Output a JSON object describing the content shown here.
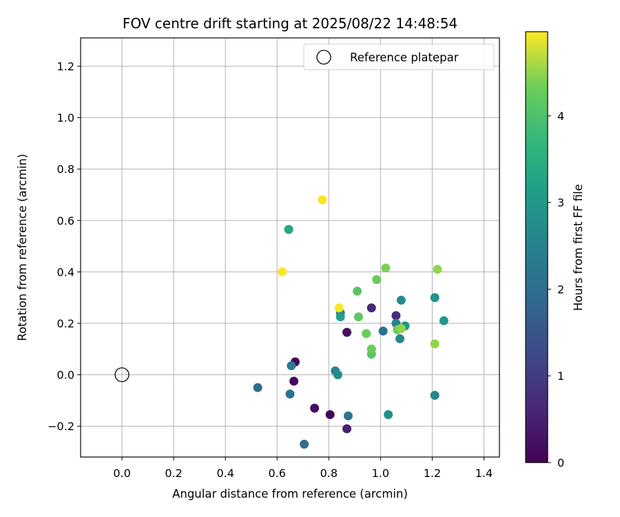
{
  "chart_data": {
    "type": "scatter",
    "title": "FOV centre drift starting at 2025/08/22 14:48:54",
    "xlabel": "Angular distance from reference (arcmin)",
    "ylabel": "Rotation from reference (arcmin)",
    "xlim": [
      -0.16,
      1.46
    ],
    "ylim": [
      -0.32,
      1.31
    ],
    "xticks": [
      0.0,
      0.2,
      0.4,
      0.6,
      0.8,
      1.0,
      1.2,
      1.4
    ],
    "xtick_labels": [
      "0.0",
      "0.2",
      "0.4",
      "0.6",
      "0.8",
      "1.0",
      "1.2",
      "1.4"
    ],
    "yticks": [
      -0.2,
      0.0,
      0.2,
      0.4,
      0.6,
      0.8,
      1.0,
      1.2
    ],
    "ytick_labels": [
      "−0.2",
      "0.0",
      "0.2",
      "0.4",
      "0.6",
      "0.8",
      "1.0",
      "1.2"
    ],
    "grid": true,
    "legend": {
      "entries": [
        "Reference platepar"
      ],
      "placement": "top-right"
    },
    "reference_point": {
      "x": 0.0,
      "y": 0.0
    },
    "colorbar": {
      "label": "Hours from first FF file",
      "colormap": "viridis",
      "range": [
        0,
        4.97
      ],
      "ticks": [
        0,
        1,
        2,
        3,
        4
      ],
      "tick_labels": [
        "0",
        "1",
        "2",
        "3",
        "4"
      ]
    },
    "points": [
      {
        "x": 0.67,
        "y": 0.05,
        "h": 0.1
      },
      {
        "x": 0.665,
        "y": -0.025,
        "h": 0.15
      },
      {
        "x": 0.745,
        "y": -0.13,
        "h": 0.2
      },
      {
        "x": 0.805,
        "y": -0.155,
        "h": 0.05
      },
      {
        "x": 0.87,
        "y": 0.165,
        "h": 0.2
      },
      {
        "x": 0.87,
        "y": -0.21,
        "h": 0.5
      },
      {
        "x": 0.965,
        "y": 0.26,
        "h": 0.6
      },
      {
        "x": 1.06,
        "y": 0.23,
        "h": 0.7
      },
      {
        "x": 0.525,
        "y": -0.05,
        "h": 2.0
      },
      {
        "x": 0.65,
        "y": -0.075,
        "h": 2.1
      },
      {
        "x": 0.655,
        "y": 0.035,
        "h": 2.3
      },
      {
        "x": 0.705,
        "y": -0.27,
        "h": 2.0
      },
      {
        "x": 0.875,
        "y": -0.16,
        "h": 2.2
      },
      {
        "x": 1.01,
        "y": 0.17,
        "h": 2.1
      },
      {
        "x": 0.845,
        "y": 0.24,
        "h": 2.5
      },
      {
        "x": 0.825,
        "y": 0.015,
        "h": 2.6
      },
      {
        "x": 0.835,
        "y": 0.0,
        "h": 2.7
      },
      {
        "x": 1.06,
        "y": 0.2,
        "h": 2.5
      },
      {
        "x": 1.08,
        "y": 0.29,
        "h": 2.7
      },
      {
        "x": 1.075,
        "y": 0.14,
        "h": 2.6
      },
      {
        "x": 1.03,
        "y": -0.155,
        "h": 2.8
      },
      {
        "x": 1.21,
        "y": -0.08,
        "h": 2.6
      },
      {
        "x": 1.21,
        "y": 0.3,
        "h": 2.9
      },
      {
        "x": 1.095,
        "y": 0.19,
        "h": 2.9
      },
      {
        "x": 1.245,
        "y": 0.21,
        "h": 3.0
      },
      {
        "x": 0.645,
        "y": 0.565,
        "h": 3.3
      },
      {
        "x": 0.845,
        "y": 0.225,
        "h": 3.2
      },
      {
        "x": 0.91,
        "y": 0.325,
        "h": 4.1
      },
      {
        "x": 0.915,
        "y": 0.225,
        "h": 4.2
      },
      {
        "x": 0.945,
        "y": 0.16,
        "h": 4.3
      },
      {
        "x": 0.965,
        "y": 0.08,
        "h": 4.1
      },
      {
        "x": 0.965,
        "y": 0.1,
        "h": 4.3
      },
      {
        "x": 0.985,
        "y": 0.37,
        "h": 4.3
      },
      {
        "x": 1.02,
        "y": 0.415,
        "h": 4.4
      },
      {
        "x": 1.065,
        "y": 0.175,
        "h": 4.3
      },
      {
        "x": 1.08,
        "y": 0.18,
        "h": 4.5
      },
      {
        "x": 1.21,
        "y": 0.12,
        "h": 4.5
      },
      {
        "x": 1.22,
        "y": 0.41,
        "h": 4.5
      },
      {
        "x": 0.62,
        "y": 0.4,
        "h": 4.95
      },
      {
        "x": 0.775,
        "y": 0.68,
        "h": 4.95
      },
      {
        "x": 0.84,
        "y": 0.26,
        "h": 4.95
      }
    ]
  }
}
